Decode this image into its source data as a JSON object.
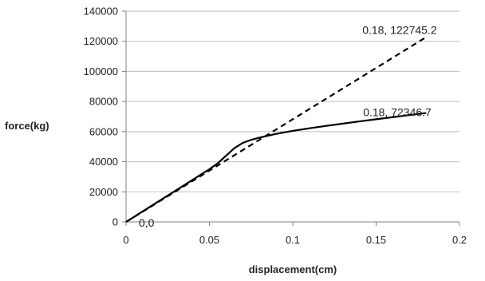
{
  "chart_data": {
    "type": "line",
    "title": "",
    "xlabel": "displacement(cm)",
    "ylabel": "force(kg)",
    "xlim": [
      0,
      0.2
    ],
    "ylim": [
      0,
      140000
    ],
    "x_ticks": [
      0,
      0.05,
      0.1,
      0.15,
      0.2
    ],
    "x_tick_labels": [
      "0",
      "0.05",
      "0.1",
      "0.15",
      "0.2"
    ],
    "y_ticks": [
      0,
      20000,
      40000,
      60000,
      80000,
      100000,
      120000,
      140000
    ],
    "y_tick_labels": [
      "0",
      "20000",
      "40000",
      "60000",
      "80000",
      "100000",
      "120000",
      "140000"
    ],
    "grid": "horizontal",
    "legend": "none",
    "series": [
      {
        "style": "dashed",
        "color": "#000000",
        "x": [
          0,
          0.18
        ],
        "y": [
          0,
          122745.2
        ]
      },
      {
        "style": "solid",
        "color": "#000000",
        "x": [
          0,
          0.01,
          0.02,
          0.03,
          0.04,
          0.05,
          0.055,
          0.06,
          0.065,
          0.07,
          0.075,
          0.08,
          0.09,
          0.1,
          0.11,
          0.12,
          0.13,
          0.14,
          0.15,
          0.16,
          0.17,
          0.18
        ],
        "y": [
          0,
          7000,
          14000,
          21000,
          28000,
          35000,
          39000,
          44000,
          49000,
          52500,
          54500,
          56000,
          58500,
          60500,
          62200,
          63800,
          65300,
          66800,
          68200,
          69600,
          71000,
          72346.7
        ]
      }
    ],
    "annotations": [
      {
        "text": "0.18, 122745.2",
        "x": 0.18,
        "y": 122745.2
      },
      {
        "text": "0.18, 72346.7",
        "x": 0.18,
        "y": 72346.7
      },
      {
        "text": "0,0",
        "x": 0,
        "y": 0
      }
    ]
  }
}
